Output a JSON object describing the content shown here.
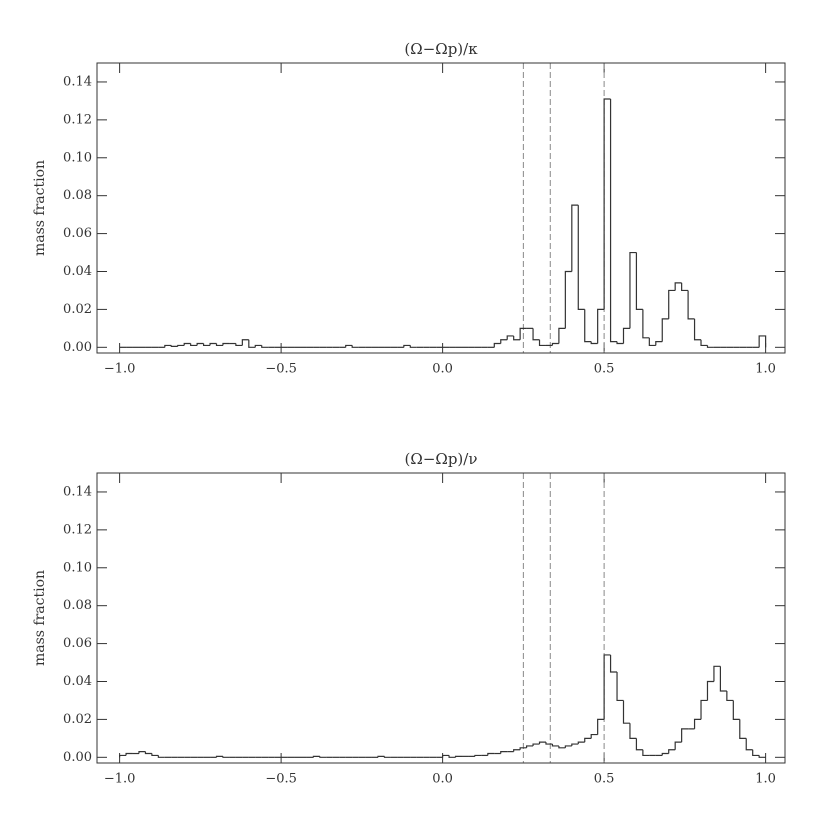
{
  "chart_data": [
    {
      "type": "histogram",
      "title": "(Ω−Ωp)/κ",
      "ylabel": "mass fraction",
      "color": "#333333",
      "vline_color": "#888888",
      "vlines": [
        0.25,
        0.3333,
        0.5
      ],
      "xlim": [
        -1.07,
        1.06
      ],
      "ylim": [
        -0.003,
        0.15
      ],
      "xticks": [
        {
          "value": -1,
          "label": "−1.0"
        },
        {
          "value": -0.5,
          "label": "−0.5"
        },
        {
          "value": 0,
          "label": "0.0"
        },
        0.5,
        {
          "value": 1,
          "label": "1.0"
        }
      ],
      "yticks": [
        {
          "value": 0,
          "label": "0.00"
        },
        0.02,
        0.04,
        0.06,
        0.08,
        {
          "value": 0.1,
          "label": "0.10"
        },
        0.12,
        0.14
      ],
      "bins": [
        -1,
        -0.98,
        -0.96,
        -0.94,
        -0.92,
        -0.9,
        -0.88,
        -0.86,
        -0.84,
        -0.82,
        -0.8,
        -0.78,
        -0.76,
        -0.74,
        -0.72,
        -0.7,
        -0.68,
        -0.66,
        -0.64,
        -0.62,
        -0.6,
        -0.58,
        -0.56,
        -0.54,
        -0.52,
        -0.5,
        -0.48,
        -0.46,
        -0.44,
        -0.42,
        -0.4,
        -0.38,
        -0.36,
        -0.34,
        -0.32,
        -0.3,
        -0.28,
        -0.26,
        -0.24,
        -0.22,
        -0.2,
        -0.18,
        -0.16,
        -0.14,
        -0.12,
        -0.1,
        -0.08,
        -0.06,
        -0.04,
        -0.02,
        0,
        0.02,
        0.04,
        0.06,
        0.08,
        0.1,
        0.12,
        0.14,
        0.16,
        0.18,
        0.2,
        0.22,
        0.24,
        0.26,
        0.28,
        0.3,
        0.32,
        0.34,
        0.36,
        0.38,
        0.4,
        0.42,
        0.44,
        0.46,
        0.48,
        0.5,
        0.52,
        0.54,
        0.56,
        0.58,
        0.6,
        0.62,
        0.64,
        0.66,
        0.68,
        0.7,
        0.72,
        0.74,
        0.76,
        0.78,
        0.8,
        0.82,
        0.84,
        0.86,
        0.88,
        0.9,
        0.92,
        0.94,
        0.96,
        0.98,
        1
      ],
      "values": [
        0,
        0,
        0,
        0,
        0,
        0,
        0,
        0.001,
        0.0005,
        0.001,
        0.002,
        0.001,
        0.002,
        0.001,
        0.002,
        0.001,
        0.002,
        0.002,
        0.001,
        0.004,
        0,
        0.001,
        0,
        0,
        0,
        0,
        0,
        0,
        0,
        0,
        0,
        0,
        0,
        0,
        0,
        0.001,
        0,
        0,
        0,
        0,
        0,
        0,
        0,
        0,
        0.001,
        0,
        0,
        0,
        0,
        0,
        0,
        0,
        0,
        0,
        0,
        0,
        0,
        0,
        0.002,
        0.004,
        0.006,
        0.004,
        0.01,
        0.01,
        0.004,
        0.001,
        0.001,
        0.002,
        0.01,
        0.04,
        0.075,
        0.02,
        0.003,
        0.002,
        0.02,
        0.131,
        0.003,
        0.002,
        0.01,
        0.05,
        0.02,
        0.005,
        0.001,
        0.003,
        0.015,
        0.03,
        0.034,
        0.03,
        0.015,
        0.004,
        0.001,
        0,
        0,
        0,
        0,
        0,
        0,
        0,
        0,
        0.006
      ]
    },
    {
      "type": "histogram",
      "title": "(Ω−Ωp)/ν",
      "ylabel": "mass fraction",
      "color": "#333333",
      "vline_color": "#888888",
      "vlines": [
        0.25,
        0.3333,
        0.5
      ],
      "xlim": [
        -1.07,
        1.06
      ],
      "ylim": [
        -0.003,
        0.15
      ],
      "xticks": [
        {
          "value": -1,
          "label": "−1.0"
        },
        {
          "value": -0.5,
          "label": "−0.5"
        },
        {
          "value": 0,
          "label": "0.0"
        },
        0.5,
        {
          "value": 1,
          "label": "1.0"
        }
      ],
      "yticks": [
        {
          "value": 0,
          "label": "0.00"
        },
        0.02,
        0.04,
        0.06,
        0.08,
        {
          "value": 0.1,
          "label": "0.10"
        },
        0.12,
        0.14
      ],
      "bins": [
        -1,
        -0.98,
        -0.96,
        -0.94,
        -0.92,
        -0.9,
        -0.88,
        -0.86,
        -0.84,
        -0.82,
        -0.8,
        -0.78,
        -0.76,
        -0.74,
        -0.72,
        -0.7,
        -0.68,
        -0.66,
        -0.64,
        -0.62,
        -0.6,
        -0.58,
        -0.56,
        -0.54,
        -0.52,
        -0.5,
        -0.48,
        -0.46,
        -0.44,
        -0.42,
        -0.4,
        -0.38,
        -0.36,
        -0.34,
        -0.32,
        -0.3,
        -0.28,
        -0.26,
        -0.24,
        -0.22,
        -0.2,
        -0.18,
        -0.16,
        -0.14,
        -0.12,
        -0.1,
        -0.08,
        -0.06,
        -0.04,
        -0.02,
        0,
        0.02,
        0.04,
        0.06,
        0.08,
        0.1,
        0.12,
        0.14,
        0.16,
        0.18,
        0.2,
        0.22,
        0.24,
        0.26,
        0.28,
        0.3,
        0.32,
        0.34,
        0.36,
        0.38,
        0.4,
        0.42,
        0.44,
        0.46,
        0.48,
        0.5,
        0.52,
        0.54,
        0.56,
        0.58,
        0.6,
        0.62,
        0.64,
        0.66,
        0.68,
        0.7,
        0.72,
        0.74,
        0.76,
        0.78,
        0.8,
        0.82,
        0.84,
        0.86,
        0.88,
        0.9,
        0.92,
        0.94,
        0.96,
        0.98,
        1
      ],
      "values": [
        0.001,
        0.002,
        0.002,
        0.003,
        0.002,
        0.001,
        0,
        0,
        0,
        0,
        0,
        0,
        0,
        0,
        0,
        0.0005,
        0,
        0,
        0,
        0,
        0,
        0,
        0,
        0,
        0,
        0,
        0,
        0,
        0,
        0,
        0.0005,
        0,
        0,
        0,
        0,
        0,
        0,
        0,
        0,
        0,
        0.0005,
        0,
        0,
        0,
        0,
        0,
        0,
        0,
        0,
        0,
        0.001,
        0,
        0.0005,
        0.0005,
        0.0005,
        0.001,
        0.001,
        0.002,
        0.002,
        0.003,
        0.003,
        0.004,
        0.005,
        0.006,
        0.007,
        0.008,
        0.007,
        0.006,
        0.005,
        0.006,
        0.007,
        0.008,
        0.01,
        0.012,
        0.02,
        0.054,
        0.045,
        0.03,
        0.018,
        0.01,
        0.004,
        0.001,
        0.001,
        0.001,
        0.002,
        0.004,
        0.008,
        0.015,
        0.015,
        0.02,
        0.03,
        0.04,
        0.048,
        0.035,
        0.03,
        0.02,
        0.01,
        0.004,
        0.001,
        0
      ]
    }
  ]
}
